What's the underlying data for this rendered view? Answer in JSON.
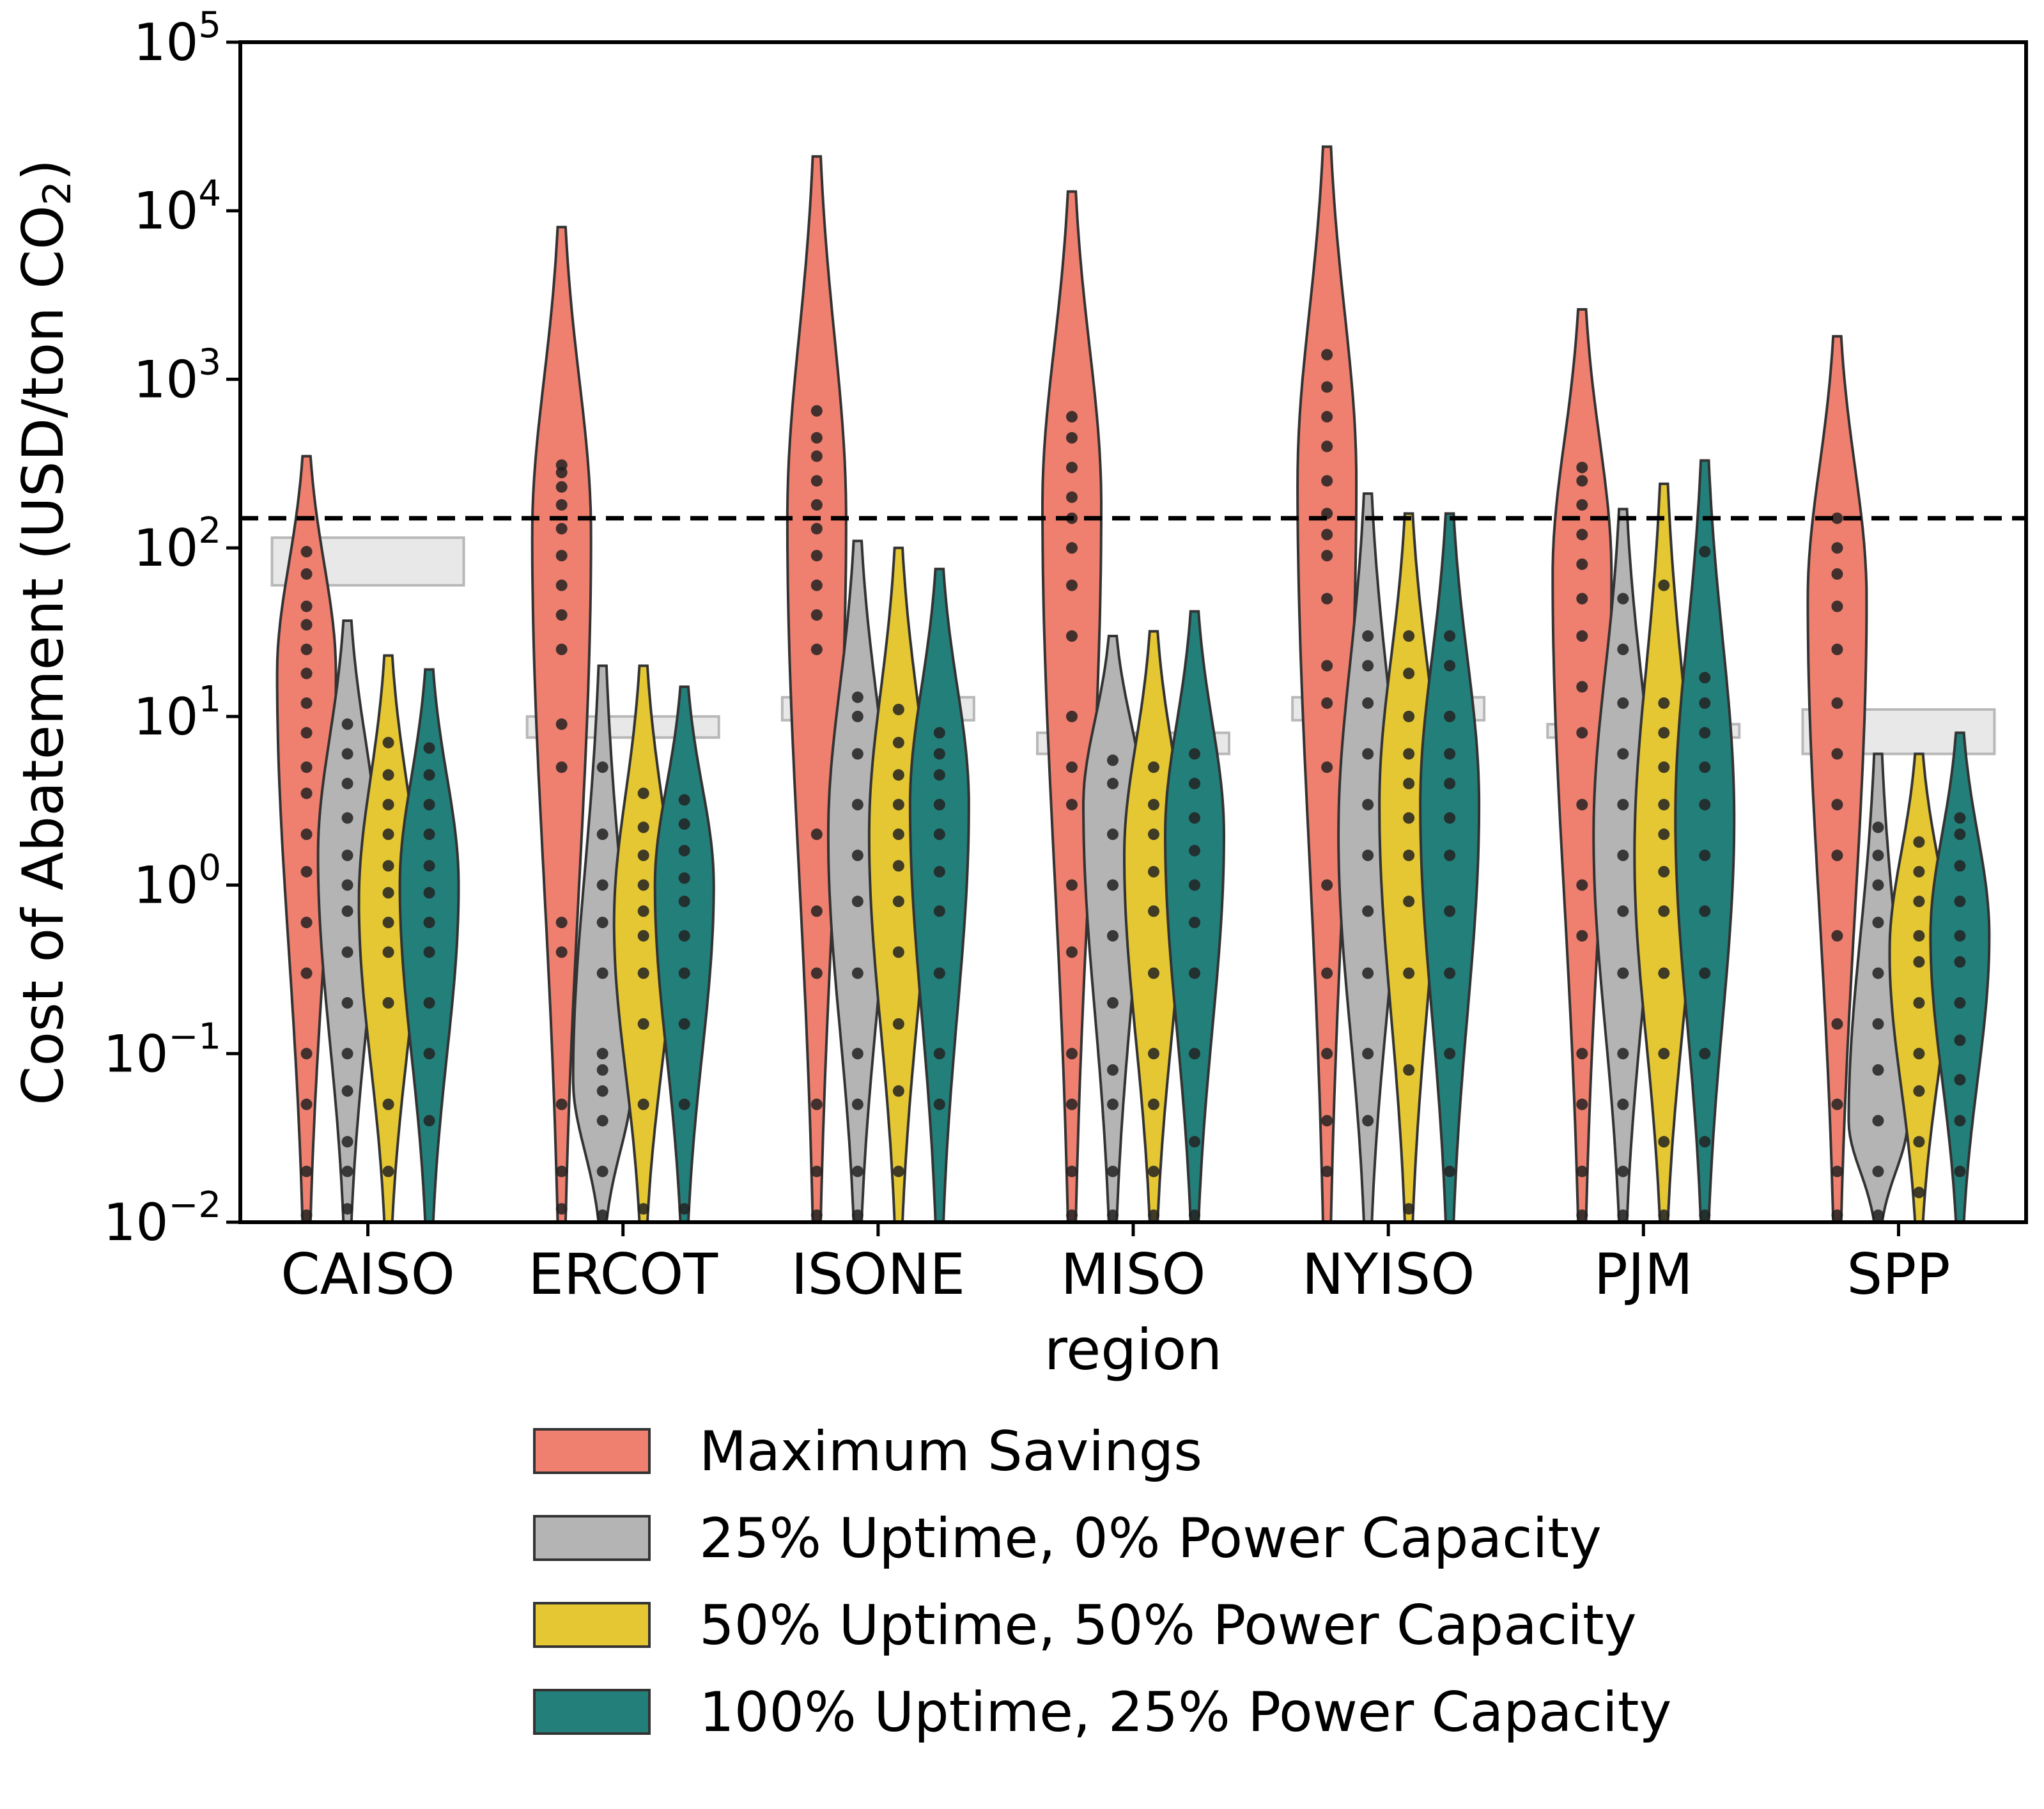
{
  "chart_data": {
    "type": "violin",
    "xlabel": "region",
    "ylabel": "Cost of Abatement (USD/ton CO",
    "ylabel_sub": "2",
    "ylabel_close": ")",
    "yscale": "log",
    "ylim": [
      0.01,
      100000
    ],
    "yticks": [
      {
        "base": "10",
        "exp": "−2",
        "value": 0.01
      },
      {
        "base": "10",
        "exp": "−1",
        "value": 0.1
      },
      {
        "base": "10",
        "exp": "0",
        "value": 1
      },
      {
        "base": "10",
        "exp": "1",
        "value": 10
      },
      {
        "base": "10",
        "exp": "2",
        "value": 100
      },
      {
        "base": "10",
        "exp": "3",
        "value": 1000
      },
      {
        "base": "10",
        "exp": "4",
        "value": 10000
      },
      {
        "base": "10",
        "exp": "5",
        "value": 100000
      }
    ],
    "categories": [
      "CAISO",
      "ERCOT",
      "ISONE",
      "MISO",
      "NYISO",
      "PJM",
      "SPP"
    ],
    "reference_line": 150,
    "legend_position": "bottom-center",
    "series": [
      {
        "name": "Maximum Savings",
        "color": "#EF7F6E",
        "ranges": [
          [
            0.01,
            350
          ],
          [
            0.01,
            8000
          ],
          [
            0.01,
            21000
          ],
          [
            0.01,
            13000
          ],
          [
            0.01,
            24000
          ],
          [
            0.01,
            2600
          ],
          [
            0.01,
            1800
          ]
        ],
        "peaks": [
          18,
          120,
          150,
          180,
          250,
          70,
          50
        ],
        "points": [
          [
            0.011,
            0.02,
            0.05,
            0.1,
            0.3,
            0.6,
            1.2,
            2,
            3.5,
            5,
            8,
            12,
            18,
            25,
            35,
            45,
            70,
            95
          ],
          [
            0.012,
            0.02,
            0.05,
            0.4,
            0.6,
            5,
            9,
            25,
            40,
            60,
            90,
            130,
            180,
            230,
            280,
            310
          ],
          [
            0.011,
            0.02,
            0.05,
            0.3,
            0.7,
            2,
            25,
            40,
            60,
            90,
            130,
            180,
            250,
            350,
            450,
            650
          ],
          [
            0.011,
            0.02,
            0.05,
            0.1,
            0.4,
            1,
            3,
            5,
            10,
            30,
            60,
            100,
            150,
            200,
            300,
            450,
            600
          ],
          [
            0.02,
            0.04,
            0.1,
            0.3,
            1,
            5,
            12,
            20,
            50,
            90,
            120,
            160,
            250,
            400,
            600,
            900,
            1400
          ],
          [
            0.011,
            0.02,
            0.05,
            0.1,
            0.5,
            1,
            3,
            8,
            15,
            30,
            50,
            80,
            120,
            180,
            250,
            300
          ],
          [
            0.011,
            0.02,
            0.05,
            0.15,
            0.5,
            1.5,
            3,
            6,
            12,
            25,
            45,
            70,
            100,
            150
          ]
        ]
      },
      {
        "name": "25% Uptime, 0% Power Capacity",
        "color": "#B4B4B4",
        "ranges": [
          [
            0.01,
            37
          ],
          [
            0.01,
            20
          ],
          [
            0.01,
            110
          ],
          [
            0.01,
            30
          ],
          [
            0.01,
            210
          ],
          [
            0.01,
            170
          ],
          [
            0.01,
            6
          ]
        ],
        "peaks": [
          1.5,
          0.07,
          2,
          3,
          2,
          2,
          0.04
        ],
        "points": [
          [
            0.012,
            0.02,
            0.03,
            0.06,
            0.1,
            0.2,
            0.4,
            0.7,
            1,
            1.5,
            2.5,
            4,
            6,
            9
          ],
          [
            0.011,
            0.02,
            0.04,
            0.06,
            0.08,
            0.1,
            0.3,
            0.6,
            1,
            2,
            5
          ],
          [
            0.011,
            0.02,
            0.05,
            0.1,
            0.3,
            0.8,
            1.5,
            3,
            6,
            10,
            13
          ],
          [
            0.011,
            0.02,
            0.05,
            0.08,
            0.2,
            0.5,
            1,
            2,
            4,
            5.5
          ],
          [
            0.04,
            0.1,
            0.3,
            0.7,
            1.5,
            3,
            6,
            12,
            20,
            30
          ],
          [
            0.011,
            0.02,
            0.05,
            0.1,
            0.3,
            0.7,
            1.5,
            3,
            6,
            12,
            25,
            50
          ],
          [
            0.011,
            0.02,
            0.04,
            0.08,
            0.15,
            0.3,
            0.6,
            1,
            1.5,
            2.2
          ]
        ]
      },
      {
        "name": "50% Uptime, 50% Power Capacity",
        "color": "#E5C733",
        "ranges": [
          [
            0.01,
            23
          ],
          [
            0.01,
            20
          ],
          [
            0.01,
            100
          ],
          [
            0.01,
            32
          ],
          [
            0.01,
            160
          ],
          [
            0.01,
            240
          ],
          [
            0.01,
            6
          ]
        ],
        "peaks": [
          0.8,
          0.6,
          2,
          1.5,
          3,
          1.5,
          0.4
        ],
        "points": [
          [
            0.02,
            0.05,
            0.2,
            0.4,
            0.6,
            0.9,
            1.3,
            2,
            3,
            4.5,
            7
          ],
          [
            0.012,
            0.05,
            0.15,
            0.3,
            0.5,
            0.7,
            1,
            1.5,
            2.2,
            3.5
          ],
          [
            0.02,
            0.06,
            0.15,
            0.4,
            0.8,
            1.3,
            2,
            3,
            4.5,
            7,
            11
          ],
          [
            0.011,
            0.02,
            0.05,
            0.1,
            0.3,
            0.7,
            1.2,
            2,
            3,
            5
          ],
          [
            0.012,
            0.08,
            0.3,
            0.8,
            1.5,
            2.5,
            4,
            6,
            10,
            18,
            30
          ],
          [
            0.011,
            0.03,
            0.1,
            0.3,
            0.7,
            1.2,
            2,
            3,
            5,
            8,
            12,
            60
          ],
          [
            0.015,
            0.03,
            0.06,
            0.1,
            0.2,
            0.35,
            0.5,
            0.8,
            1.2,
            1.8
          ]
        ]
      },
      {
        "name": "100% Uptime, 25% Power Capacity",
        "color": "#237F7A",
        "ranges": [
          [
            0.01,
            19
          ],
          [
            0.01,
            15
          ],
          [
            0.01,
            75
          ],
          [
            0.01,
            42
          ],
          [
            0.01,
            160
          ],
          [
            0.01,
            330
          ],
          [
            0.01,
            8
          ]
        ],
        "peaks": [
          1,
          1,
          3,
          2,
          3,
          2.5,
          0.5
        ],
        "points": [
          [
            0.04,
            0.1,
            0.2,
            0.4,
            0.6,
            0.9,
            1.3,
            2,
            3,
            4.5,
            6.5
          ],
          [
            0.012,
            0.05,
            0.15,
            0.3,
            0.5,
            0.8,
            1.1,
            1.6,
            2.3,
            3.2
          ],
          [
            0.05,
            0.1,
            0.3,
            0.7,
            1.2,
            2,
            3,
            4.5,
            6,
            8
          ],
          [
            0.011,
            0.03,
            0.1,
            0.3,
            0.6,
            1,
            1.6,
            2.5,
            4,
            6
          ],
          [
            0.02,
            0.1,
            0.3,
            0.7,
            1.5,
            2.5,
            4,
            6,
            10,
            20,
            30
          ],
          [
            0.011,
            0.03,
            0.1,
            0.3,
            0.7,
            1.5,
            3,
            5,
            8,
            12,
            17,
            95
          ],
          [
            0.02,
            0.04,
            0.07,
            0.12,
            0.2,
            0.35,
            0.5,
            0.8,
            1.3,
            2,
            2.5
          ]
        ]
      }
    ],
    "model_bands": [
      {
        "category": "CAISO",
        "low": 60,
        "high": 115
      },
      {
        "category": "ERCOT",
        "low": 7.5,
        "high": 10
      },
      {
        "category": "ISONE",
        "low": 9.5,
        "high": 13
      },
      {
        "category": "MISO",
        "low": 6,
        "high": 8
      },
      {
        "category": "NYISO",
        "low": 9.5,
        "high": 13
      },
      {
        "category": "PJM",
        "low": 7.5,
        "high": 9
      },
      {
        "category": "SPP",
        "low": 6,
        "high": 11
      }
    ]
  }
}
